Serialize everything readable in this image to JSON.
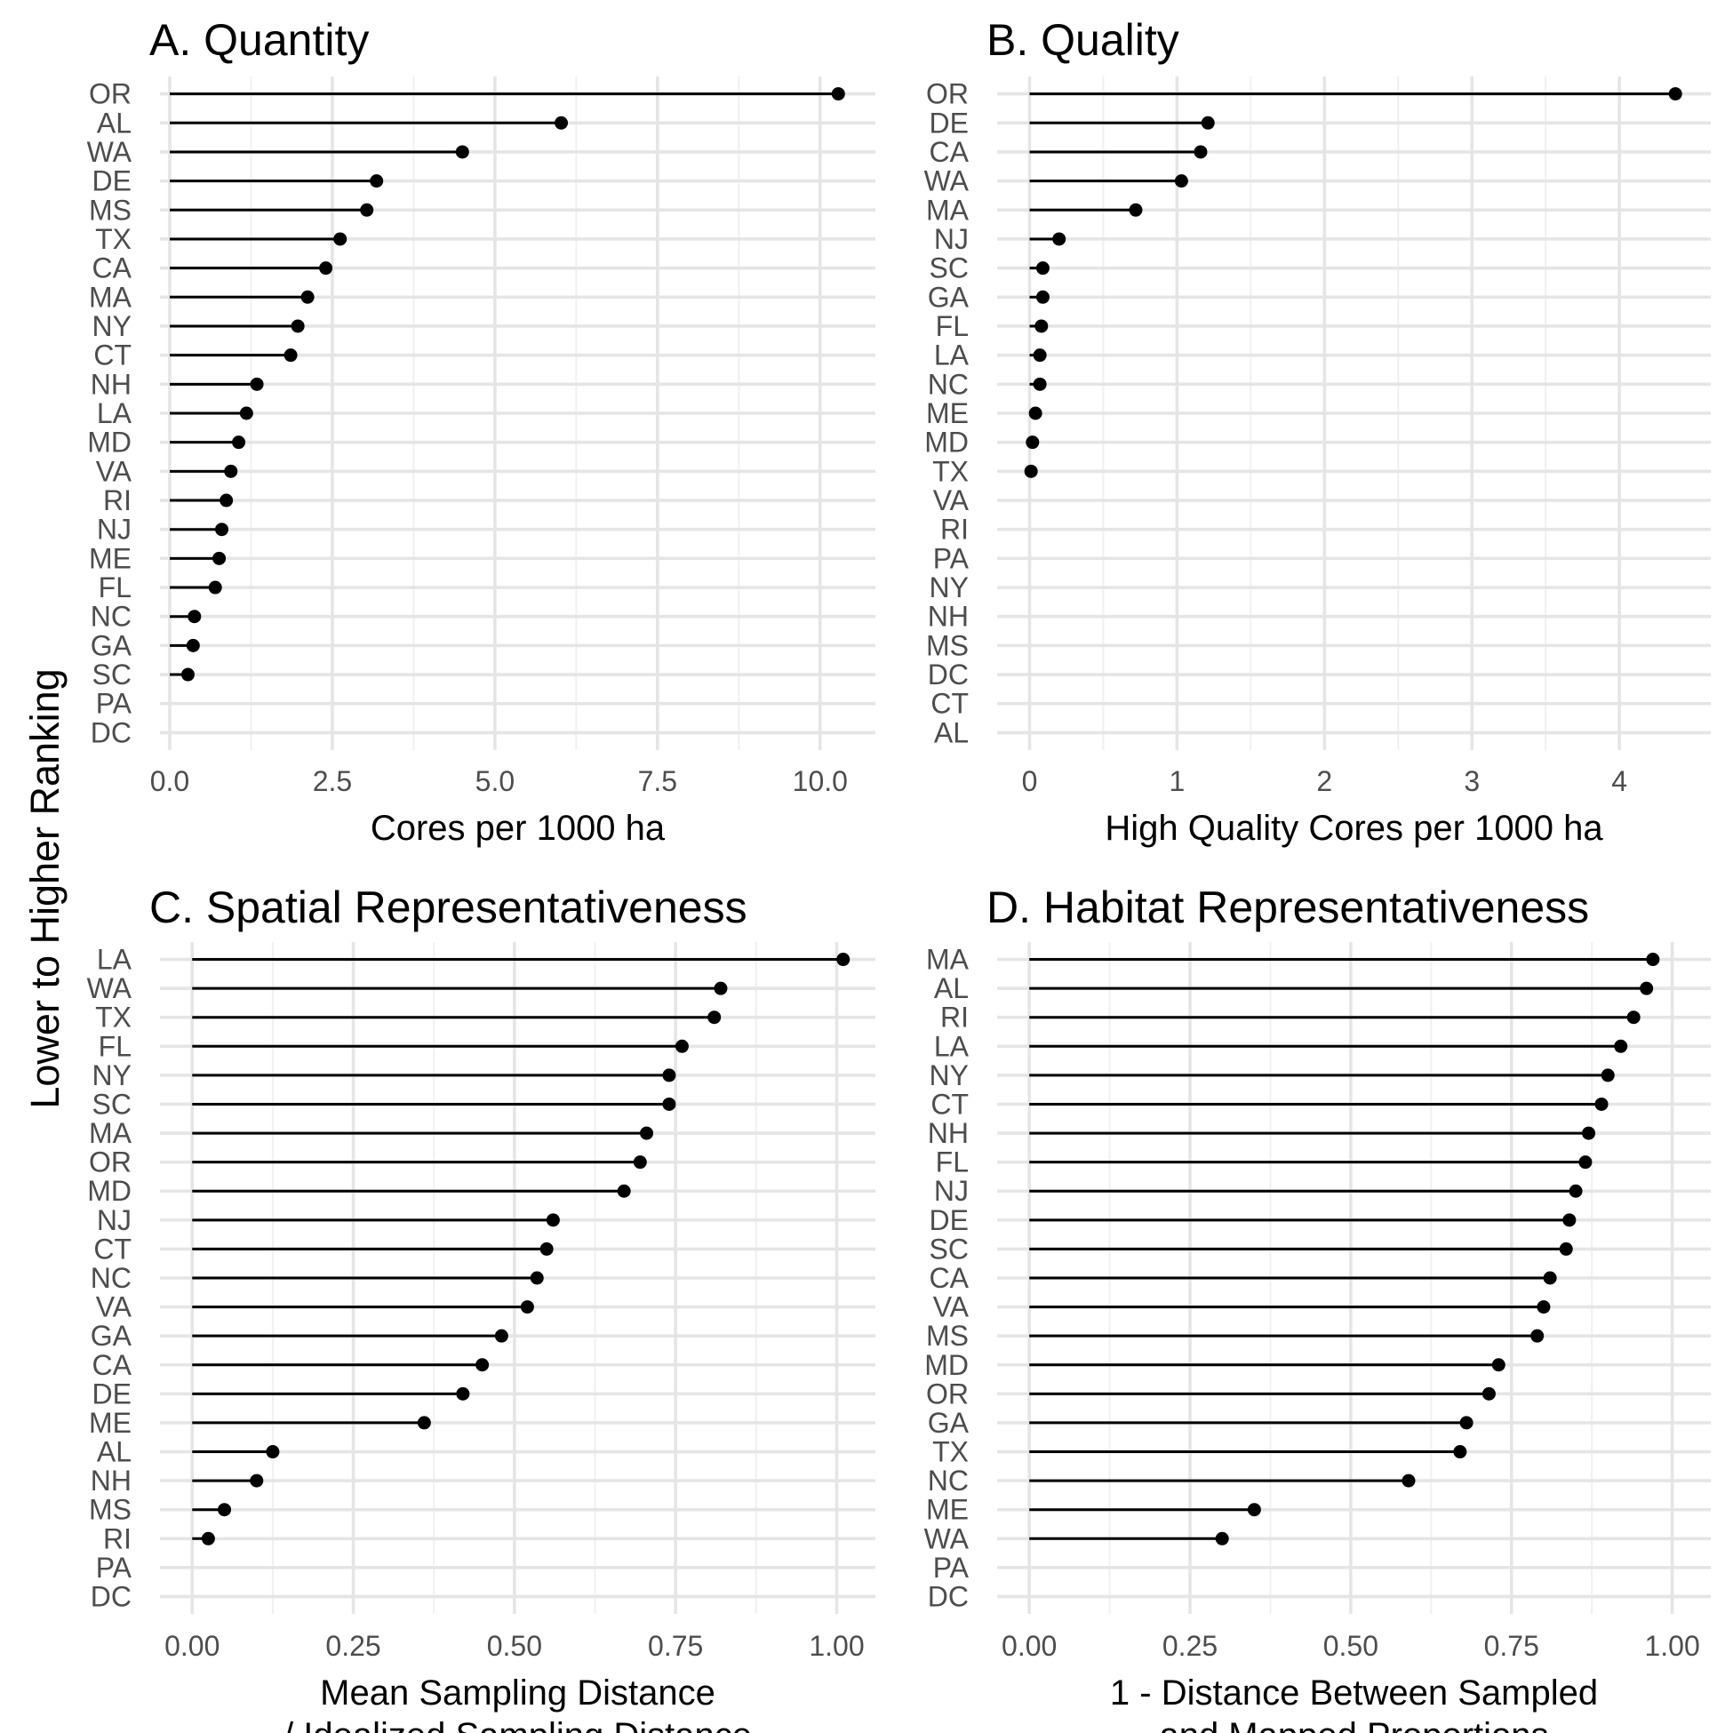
{
  "figure": {
    "ylabel": "Lower to Higher Ranking"
  },
  "chart_data": [
    {
      "type": "lollipop",
      "title": "A. Quantity",
      "xlabel": [
        "Cores per 1000 ha"
      ],
      "xlim": [
        -0.15,
        10.85
      ],
      "xticks": [
        0,
        2.5,
        5,
        7.5,
        10
      ],
      "xtick_labels": [
        "0.0",
        "2.5",
        "5.0",
        "7.5",
        "10.0"
      ],
      "categories": [
        "OR",
        "AL",
        "WA",
        "DE",
        "MS",
        "TX",
        "CA",
        "MA",
        "NY",
        "CT",
        "NH",
        "LA",
        "MD",
        "VA",
        "RI",
        "NJ",
        "ME",
        "FL",
        "NC",
        "GA",
        "SC",
        "PA",
        "DC"
      ],
      "values": [
        10.28,
        6.02,
        4.5,
        3.18,
        3.03,
        2.62,
        2.4,
        2.12,
        1.97,
        1.86,
        1.34,
        1.18,
        1.06,
        0.94,
        0.87,
        0.8,
        0.76,
        0.7,
        0.38,
        0.36,
        0.28,
        null,
        null
      ]
    },
    {
      "type": "lollipop",
      "title": "B. Quality",
      "xlabel": [
        "High Quality Cores per 1000 ha"
      ],
      "xlim": [
        -0.22,
        4.62
      ],
      "xticks": [
        0,
        1,
        2,
        3,
        4
      ],
      "xtick_labels": [
        "0",
        "1",
        "2",
        "3",
        "4"
      ],
      "categories": [
        "OR",
        "DE",
        "CA",
        "WA",
        "MA",
        "NJ",
        "SC",
        "GA",
        "FL",
        "LA",
        "NC",
        "ME",
        "MD",
        "TX",
        "VA",
        "RI",
        "PA",
        "NY",
        "NH",
        "MS",
        "DC",
        "CT",
        "AL"
      ],
      "values": [
        4.38,
        1.21,
        1.16,
        1.03,
        0.72,
        0.2,
        0.09,
        0.09,
        0.08,
        0.07,
        0.07,
        0.04,
        0.02,
        0.01,
        null,
        null,
        null,
        null,
        null,
        null,
        null,
        null,
        null
      ]
    },
    {
      "type": "lollipop",
      "title": "C. Spatial Representativeness",
      "xlabel": [
        "Mean Sampling Distance",
        "/ Idealized Sampling Distance"
      ],
      "xlim": [
        -0.05,
        1.06
      ],
      "xticks": [
        0,
        0.25,
        0.5,
        0.75,
        1
      ],
      "xtick_labels": [
        "0.00",
        "0.25",
        "0.50",
        "0.75",
        "1.00"
      ],
      "categories": [
        "LA",
        "WA",
        "TX",
        "FL",
        "NY",
        "SC",
        "MA",
        "OR",
        "MD",
        "NJ",
        "CT",
        "NC",
        "VA",
        "GA",
        "CA",
        "DE",
        "ME",
        "AL",
        "NH",
        "MS",
        "RI",
        "PA",
        "DC"
      ],
      "values": [
        1.01,
        0.82,
        0.81,
        0.76,
        0.74,
        0.74,
        0.705,
        0.695,
        0.67,
        0.56,
        0.55,
        0.535,
        0.52,
        0.48,
        0.45,
        0.42,
        0.36,
        0.125,
        0.1,
        0.05,
        0.025,
        null,
        null
      ]
    },
    {
      "type": "lollipop",
      "title": "D. Habitat Representativeness",
      "xlabel": [
        "1 - Distance Between Sampled",
        "and Mapped Proportions"
      ],
      "xlim": [
        -0.05,
        1.06
      ],
      "xticks": [
        0,
        0.25,
        0.5,
        0.75,
        1
      ],
      "xtick_labels": [
        "0.00",
        "0.25",
        "0.50",
        "0.75",
        "1.00"
      ],
      "categories": [
        "MA",
        "AL",
        "RI",
        "LA",
        "NY",
        "CT",
        "NH",
        "FL",
        "NJ",
        "DE",
        "SC",
        "CA",
        "VA",
        "MS",
        "MD",
        "OR",
        "GA",
        "TX",
        "NC",
        "ME",
        "WA",
        "PA",
        "DC"
      ],
      "values": [
        0.97,
        0.96,
        0.94,
        0.92,
        0.9,
        0.89,
        0.87,
        0.865,
        0.85,
        0.84,
        0.835,
        0.81,
        0.8,
        0.79,
        0.73,
        0.715,
        0.68,
        0.67,
        0.59,
        0.35,
        0.3,
        null,
        null
      ]
    }
  ]
}
